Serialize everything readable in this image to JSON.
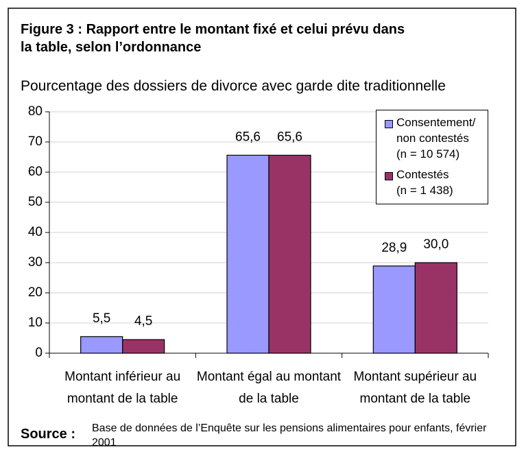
{
  "chart_data": {
    "type": "bar",
    "title": "Figure 3 : Rapport entre le montant fixé et celui prévu dans\nla table, selon l’ordonnance",
    "subtitle": "Pourcentage des dossiers de divorce avec garde dite traditionnelle",
    "categories": [
      "Montant inférieur au montant de la table",
      "Montant égal au montant de la table",
      "Montant supérieur au montant de la table"
    ],
    "series": [
      {
        "name": "Consentement/\nnon contestés\n(n = 10 574)",
        "color": "#9999ff",
        "values": [
          5.5,
          65.6,
          28.9
        ],
        "value_labels": [
          "5,5",
          "65,6",
          "28,9"
        ]
      },
      {
        "name": "Contestés\n(n = 1 438)",
        "color": "#993366",
        "values": [
          4.5,
          65.6,
          30.0
        ],
        "value_labels": [
          "4,5",
          "65,6",
          "30,0"
        ]
      }
    ],
    "ylim": [
      0,
      80
    ],
    "yticks": [
      0,
      10,
      20,
      30,
      40,
      50,
      60,
      70,
      80
    ],
    "grid": true,
    "legend": "top-right",
    "source_label": "Source :",
    "source": "Base de données de l’Enquête sur les pensions alimentaires pour enfants, février 2001"
  }
}
